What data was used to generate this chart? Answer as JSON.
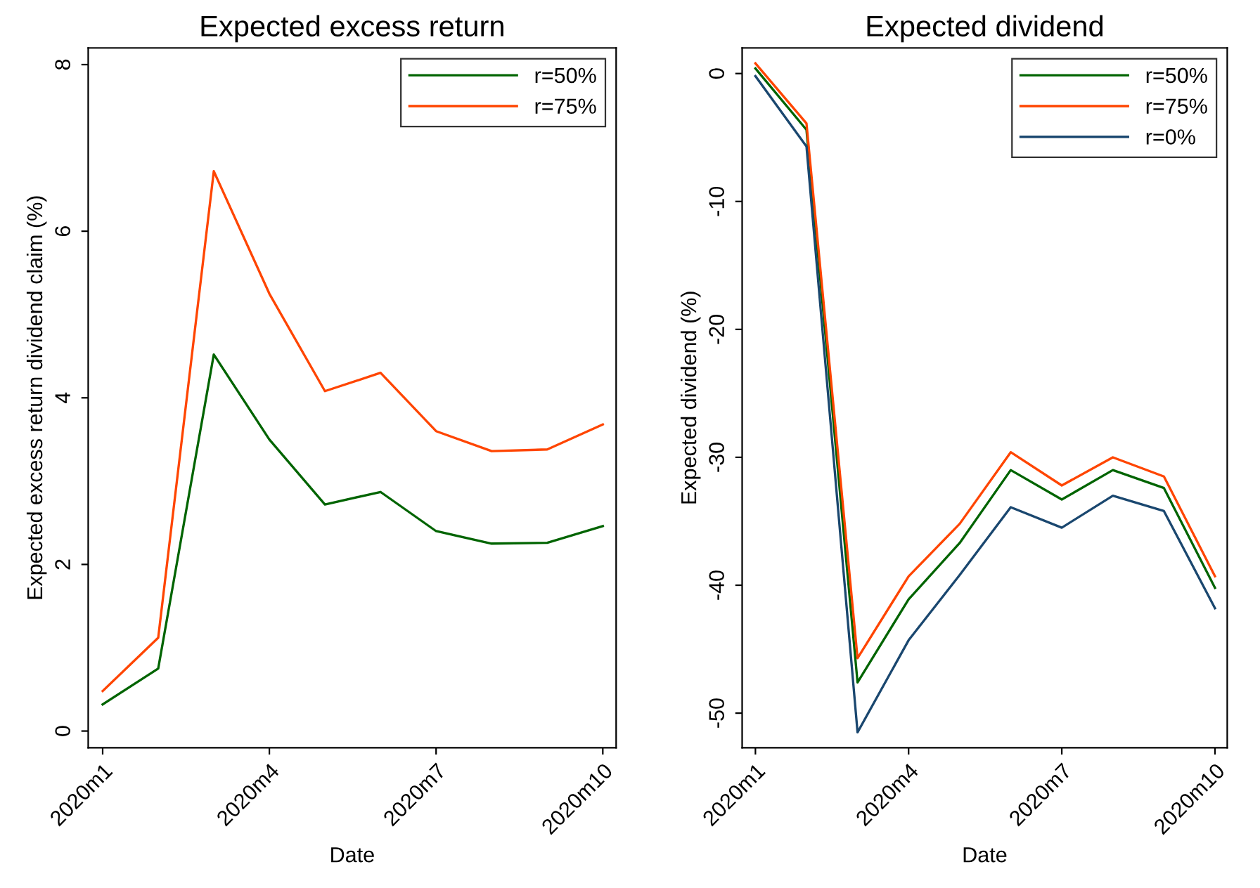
{
  "chart_data": [
    {
      "type": "line",
      "title": "Expected excess return",
      "xlabel": "Date",
      "ylabel": "Expected excess return dividend claim (%)",
      "categories": [
        "2020m1",
        null,
        null,
        "2020m4",
        null,
        null,
        "2020m7",
        null,
        null,
        "2020m10"
      ],
      "ylim": [
        -0.2,
        8.2
      ],
      "yticks": [
        0,
        2,
        4,
        6,
        8
      ],
      "grid": false,
      "legend": "top right",
      "marker": "none",
      "line_style": "solid",
      "series": [
        {
          "name": "r=50%",
          "color": "#006400",
          "values": [
            0.32,
            0.75,
            4.52,
            3.5,
            2.72,
            2.87,
            2.4,
            2.25,
            2.26,
            2.46
          ]
        },
        {
          "name": "r=75%",
          "color": "#ff4500",
          "values": [
            0.48,
            1.12,
            6.72,
            5.25,
            4.08,
            4.3,
            3.6,
            3.36,
            3.38,
            3.68
          ]
        }
      ]
    },
    {
      "type": "line",
      "title": "Expected dividend",
      "xlabel": "Date",
      "ylabel": "Expected dividend (%)",
      "categories": [
        "2020m1",
        null,
        null,
        "2020m4",
        null,
        null,
        "2020m7",
        null,
        null,
        "2020m10"
      ],
      "ylim": [
        -52.7,
        2.0
      ],
      "yticks": [
        -50,
        -40,
        -30,
        -20,
        -10,
        0
      ],
      "grid": false,
      "legend": "top right",
      "marker": "none",
      "line_style": "solid",
      "series": [
        {
          "name": "r=50%",
          "color": "#006400",
          "values": [
            0.4,
            -4.4,
            -47.6,
            -41.1,
            -36.7,
            -31.0,
            -33.3,
            -31.0,
            -32.4,
            -40.2
          ]
        },
        {
          "name": "r=75%",
          "color": "#ff4500",
          "values": [
            0.8,
            -3.9,
            -45.7,
            -39.3,
            -35.2,
            -29.6,
            -32.2,
            -30.0,
            -31.5,
            -39.3
          ]
        },
        {
          "name": "r=0%",
          "color": "#1a476f",
          "values": [
            -0.2,
            -5.7,
            -51.5,
            -44.3,
            -39.2,
            -33.9,
            -35.5,
            -33.0,
            -34.2,
            -41.8
          ]
        }
      ]
    }
  ]
}
